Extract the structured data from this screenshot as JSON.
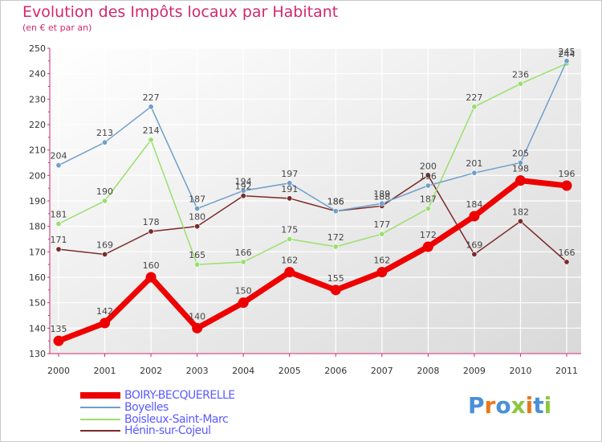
{
  "header": {
    "title": "Evolution des Impôts locaux par Habitant",
    "subtitle": "(en € et par an)"
  },
  "chart_data": {
    "type": "line",
    "title": "Evolution des Impôts locaux par Habitant",
    "subtitle": "(en € et par an)",
    "xlabel": "",
    "ylabel": "",
    "x": [
      2000,
      2001,
      2002,
      2003,
      2004,
      2005,
      2006,
      2007,
      2008,
      2009,
      2010,
      2011
    ],
    "ylim": [
      130,
      250
    ],
    "yticks": [
      130,
      140,
      150,
      160,
      170,
      180,
      190,
      200,
      210,
      220,
      230,
      240,
      250
    ],
    "grid": true,
    "legend_position": "bottom-left",
    "series": [
      {
        "name": "Hénin-sur-Cojeul",
        "color": "#7b2a2a",
        "values": [
          171,
          169,
          178,
          180,
          192,
          191,
          186,
          188,
          200,
          169,
          182,
          166
        ]
      },
      {
        "name": "Boisleux-Saint-Marc",
        "color": "#99e06b",
        "values": [
          181,
          190,
          214,
          165,
          166,
          175,
          172,
          177,
          187,
          227,
          236,
          244
        ]
      },
      {
        "name": "Boyelles",
        "color": "#6f9fcc",
        "values": [
          204,
          213,
          227,
          187,
          194,
          197,
          186,
          189,
          196,
          201,
          205,
          245
        ]
      },
      {
        "name": "BOIRY-BECQUERELLE",
        "color": "#ee0000",
        "values": [
          135,
          142,
          160,
          140,
          150,
          162,
          155,
          162,
          172,
          184,
          198,
          196
        ]
      }
    ]
  },
  "legend": [
    {
      "label": "BOIRY-BECQUERELLE",
      "color": "#ee0000"
    },
    {
      "label": "Boyelles",
      "color": "#6f9fcc"
    },
    {
      "label": "Boisleux-Saint-Marc",
      "color": "#99e06b"
    },
    {
      "label": "Hénin-sur-Cojeul",
      "color": "#7b2a2a"
    }
  ],
  "logo": {
    "text": "Proxiti",
    "letter_colors": [
      "#4a90d9",
      "#e8781e",
      "#4a90d9",
      "#8cc63f",
      "#e8781e",
      "#4a90d9",
      "#8cc63f"
    ]
  }
}
